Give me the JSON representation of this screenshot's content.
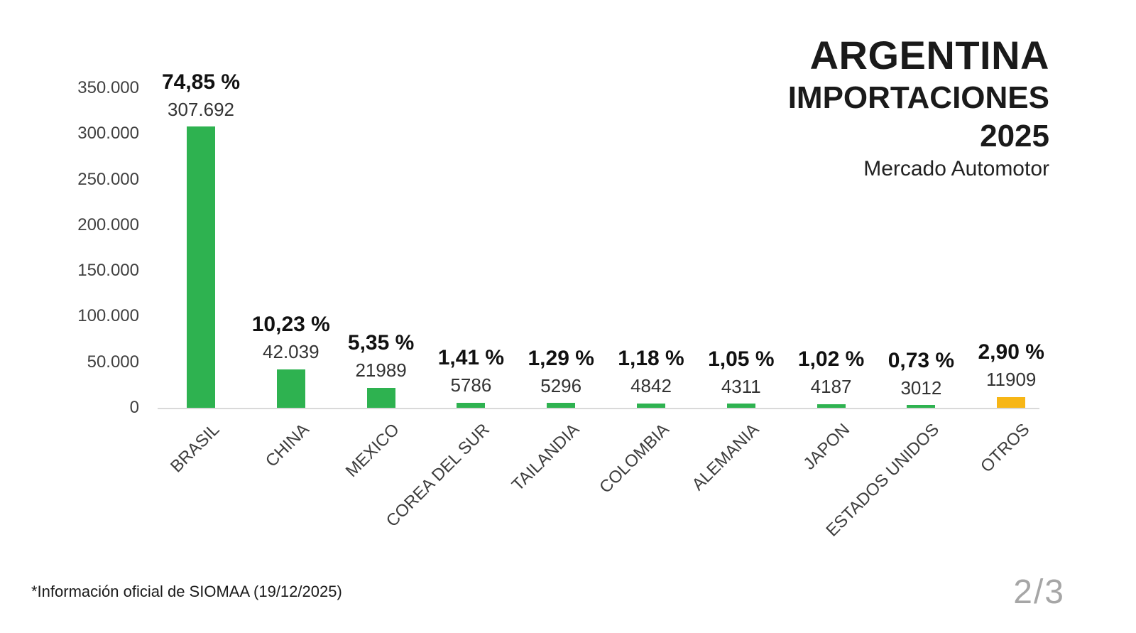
{
  "title": {
    "line1": "ARGENTINA",
    "line2": "IMPORTACIONES",
    "line3": "2025",
    "subtitle": "Mercado Automotor"
  },
  "footnote": "*Información oficial de SIOMAA (19/12/2025)",
  "page_indicator": "2/3",
  "colors": {
    "bar_green": "#2eb250",
    "bar_orange": "#f7b616",
    "axis_line": "#d9d9d9",
    "tick_text": "#404040",
    "category_text": "#3d3d3d",
    "percent_text": "#111111",
    "value_text": "#333333",
    "page_text": "#a6a6a6"
  },
  "chart_data": {
    "type": "bar",
    "title": "ARGENTINA IMPORTACIONES 2025 - Mercado Automotor",
    "categories": [
      "BRASIL",
      "CHINA",
      "MEXICO",
      "COREA DEL SUR",
      "TAILANDIA",
      "COLOMBIA",
      "ALEMANIA",
      "JAPON",
      "ESTADOS UNIDOS",
      "OTROS"
    ],
    "values": [
      307692,
      42039,
      21989,
      5786,
      5296,
      4842,
      4311,
      4187,
      3012,
      11909
    ],
    "value_labels": [
      "307.692",
      "42.039",
      "21989",
      "5786",
      "5296",
      "4842",
      "4311",
      "4187",
      "3012",
      "11909"
    ],
    "percent_labels": [
      "74,85 %",
      "10,23 %",
      "5,35 %",
      "1,41 %",
      "1,29 %",
      "1,18 %",
      "1,05 %",
      "1,02 %",
      "0,73 %",
      "2,90 %"
    ],
    "bar_colors": [
      "#2eb250",
      "#2eb250",
      "#2eb250",
      "#2eb250",
      "#2eb250",
      "#2eb250",
      "#2eb250",
      "#2eb250",
      "#2eb250",
      "#f7b616"
    ],
    "xlabel": "",
    "ylabel": "",
    "ylim": [
      0,
      350000
    ],
    "yticks": [
      {
        "value": 0,
        "label": "0"
      },
      {
        "value": 50000,
        "label": "50.000"
      },
      {
        "value": 100000,
        "label": "100.000"
      },
      {
        "value": 150000,
        "label": "150.000"
      },
      {
        "value": 200000,
        "label": "200.000"
      },
      {
        "value": 250000,
        "label": "250.000"
      },
      {
        "value": 300000,
        "label": "300.000"
      },
      {
        "value": 350000,
        "label": "350.000"
      }
    ],
    "grid": false,
    "legend": false
  }
}
